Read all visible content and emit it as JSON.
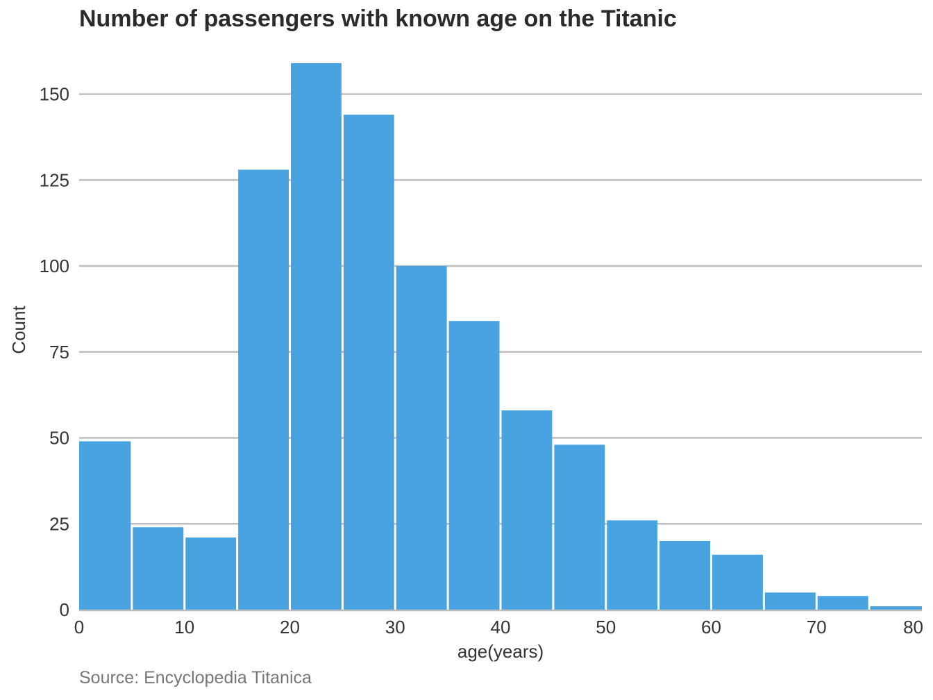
{
  "chart_data": {
    "type": "bar",
    "title": "Number of passengers with known age on the Titanic",
    "xlabel": "age(years)",
    "ylabel": "Count",
    "source": "Source: Encyclopedia Titanica",
    "bin_width": 5,
    "bins": [
      {
        "start": 0,
        "end": 5,
        "count": 49
      },
      {
        "start": 5,
        "end": 10,
        "count": 24
      },
      {
        "start": 10,
        "end": 15,
        "count": 21
      },
      {
        "start": 15,
        "end": 20,
        "count": 128
      },
      {
        "start": 20,
        "end": 25,
        "count": 159
      },
      {
        "start": 25,
        "end": 30,
        "count": 144
      },
      {
        "start": 30,
        "end": 35,
        "count": 100
      },
      {
        "start": 35,
        "end": 40,
        "count": 84
      },
      {
        "start": 40,
        "end": 45,
        "count": 58
      },
      {
        "start": 45,
        "end": 50,
        "count": 48
      },
      {
        "start": 50,
        "end": 55,
        "count": 26
      },
      {
        "start": 55,
        "end": 60,
        "count": 20
      },
      {
        "start": 60,
        "end": 65,
        "count": 16
      },
      {
        "start": 65,
        "end": 70,
        "count": 5
      },
      {
        "start": 70,
        "end": 75,
        "count": 4
      },
      {
        "start": 75,
        "end": 80,
        "count": 1
      }
    ],
    "xlim": [
      0,
      80
    ],
    "ylim": [
      0,
      160
    ],
    "xticks": [
      0,
      10,
      20,
      30,
      40,
      50,
      60,
      70,
      80
    ],
    "yticks": [
      0,
      25,
      50,
      75,
      100,
      125,
      150
    ],
    "grid": "horizontal",
    "bar_color": "#48a3e0",
    "grid_color": "#bdbdbd"
  }
}
